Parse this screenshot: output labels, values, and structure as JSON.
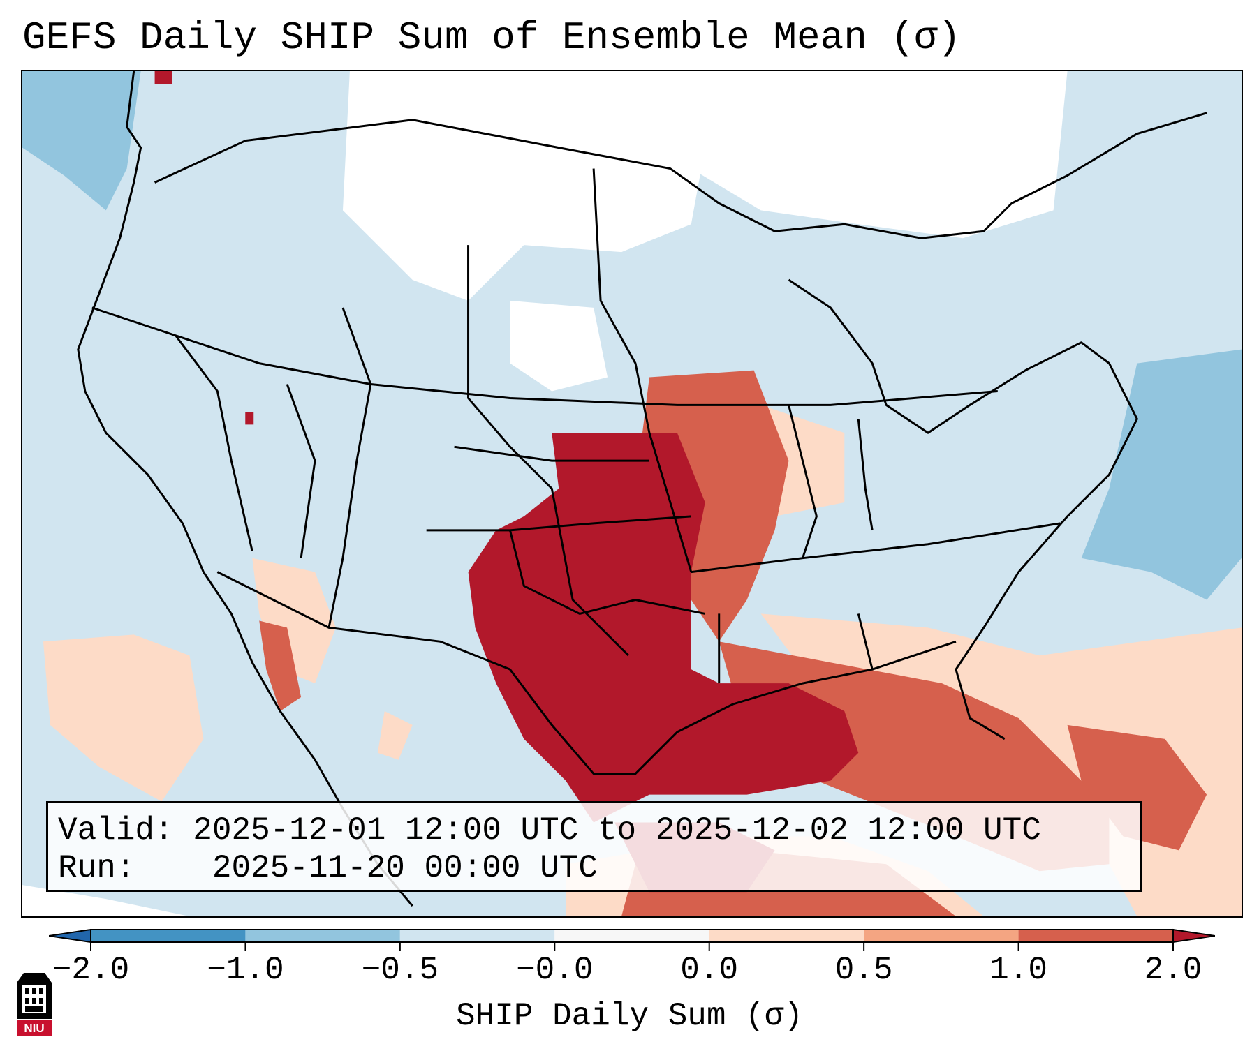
{
  "title": "GEFS Daily SHIP Sum of Ensemble Mean (σ)",
  "info": {
    "valid_label": "Valid:",
    "valid_value": "2025-12-01 12:00 UTC to 2025-12-02 12:00 UTC",
    "run_label": "Run:",
    "run_value": "2025-11-20 00:00 UTC"
  },
  "colorbar": {
    "label": "SHIP Daily Sum (σ)",
    "ticks": [
      "−2.0",
      "−1.0",
      "−0.5",
      "−0.0",
      "0.0",
      "0.5",
      "1.0",
      "2.0"
    ],
    "colors": [
      "#2166ac",
      "#4393c3",
      "#92c5de",
      "#d1e5f0",
      "#f7f7f7",
      "#fddbc7",
      "#f4a582",
      "#d6604d",
      "#b2182b"
    ],
    "extend": "both"
  },
  "map": {
    "region": "North America (CONUS)",
    "projection": "Lambert conformal",
    "fill_colors": {
      "background": "#d1e5f0",
      "near_zero": "#ffffff",
      "light_red": "#fddbc7",
      "medium_red": "#d6604d",
      "dark_red": "#b2182b",
      "light_blue": "#92c5de"
    }
  },
  "logo": {
    "name": "niu-logo",
    "text": "NIU"
  }
}
